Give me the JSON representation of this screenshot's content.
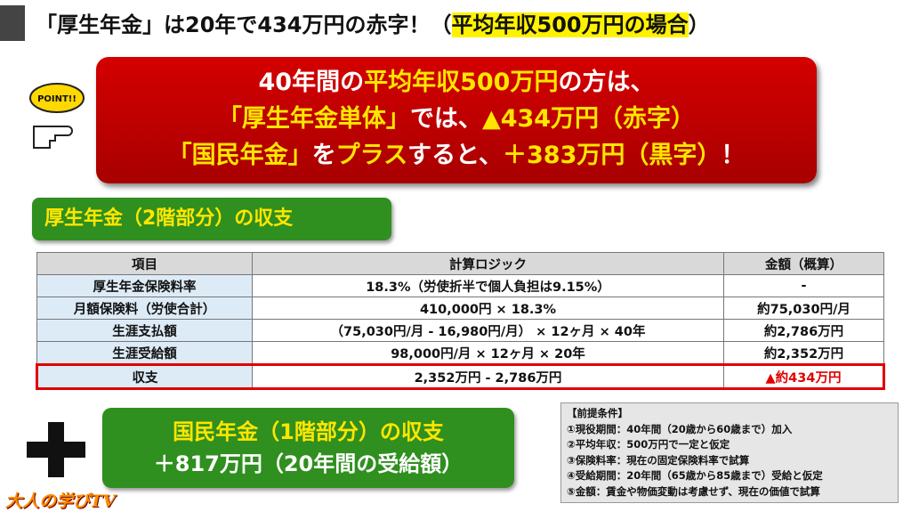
{
  "header": {
    "title": [
      "「厚生年金」は20年で434万円の赤字！（",
      "平均年収500万円の場合",
      "）"
    ]
  },
  "point": "POINT!!",
  "banner": {
    "lines": [
      [
        "40年間の",
        "平均年収500万円",
        "の方は、"
      ],
      [
        "「厚生年金単体」",
        "では、",
        "▲434万円（赤字）"
      ],
      [
        "「国民年金」",
        "を",
        "プラス",
        "すると、",
        "＋383万円（黒字）",
        "！"
      ]
    ]
  },
  "section": {
    "title": "厚生年金（2階部分）の収支"
  },
  "table": {
    "header": [
      "項目",
      "計算ロジック",
      "金額（概算）"
    ],
    "rows": [
      [
        "厚生年金保険料率",
        "18.3%（労使折半で個人負担は9.15%）",
        "-"
      ],
      [
        "月額保険料（労使合計）",
        "410,000円 × 18.3%",
        "約75,030円/月"
      ],
      [
        "生涯支払額",
        "（75,030円/月 - 16,980円/月） × 12ヶ月 × 40年",
        "約2,786万円"
      ],
      [
        "生涯受給額",
        "98,000円/月 × 12ヶ月 × 20年",
        "約2,352万円"
      ],
      [
        "収支",
        "2,352万円 - 2,786万円",
        "▲約434万円"
      ]
    ]
  },
  "national": {
    "lines": [
      "国民年金（1階部分）の収支",
      "＋817万円（20年間の受給額）"
    ]
  },
  "conditions": {
    "title": "【前提条件】",
    "items": [
      "①現役期間：40年間（20歳から60歳まで）加入",
      "②平均年収：500万円で一定と仮定",
      "③保険料率：現在の固定保険料率で試算",
      "④受給期間：20年間（65歳から85歳まで）受給と仮定",
      "⑤金額：賃金や物価変動は考慮せず、現在の価値で試算"
    ]
  },
  "logo": "大人の学びTV"
}
